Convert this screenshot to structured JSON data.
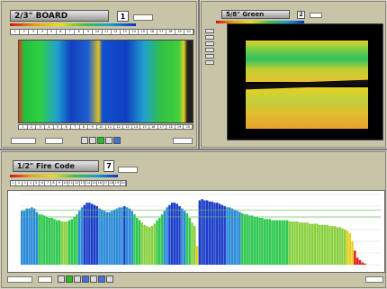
{
  "top_left": {
    "title": "2/3\" BOARD",
    "number": "1",
    "tick_labels": [
      "1",
      "2",
      "3",
      "4",
      "5",
      "6",
      "7",
      "8",
      "9",
      "10",
      "11",
      "12",
      "13",
      "14",
      "15",
      "16",
      "17",
      "18",
      "19",
      "20"
    ],
    "bottom_tick_labels": [
      "1",
      "2",
      "3",
      "4",
      "5",
      "6",
      "7",
      "8",
      "9",
      "10",
      "11",
      "12",
      "13",
      "14",
      "15",
      "16",
      "17",
      "18",
      "19",
      "20"
    ],
    "rows": 8
  },
  "top_right": {
    "title": "5/8\" Green",
    "number": "2"
  },
  "bottom": {
    "title": "1/2\" Fire Code",
    "number": "7",
    "tick_labels": [
      "1",
      "2",
      "3",
      "4",
      "5",
      "6",
      "7",
      "8",
      "9",
      "10",
      "11",
      "12",
      "13",
      "14",
      "15",
      "16",
      "17",
      "18",
      "19",
      "20"
    ]
  },
  "chart_data": {
    "type": "bar",
    "values": [
      46,
      46,
      48,
      48,
      49,
      48,
      45,
      43,
      43,
      42,
      41,
      40,
      40,
      39,
      38,
      38,
      37,
      37,
      37,
      38,
      39,
      41,
      43,
      46,
      49,
      51,
      53,
      53,
      52,
      51,
      50,
      48,
      47,
      46,
      45,
      45,
      46,
      47,
      48,
      49,
      49,
      50,
      49,
      48,
      46,
      43,
      40,
      38,
      36,
      34,
      33,
      32,
      33,
      35,
      38,
      40,
      43,
      46,
      49,
      51,
      53,
      53,
      52,
      50,
      48,
      46,
      44,
      40,
      36,
      33,
      16,
      55,
      56,
      55,
      55,
      54,
      54,
      53,
      53,
      52,
      51,
      50,
      49,
      49,
      48,
      47,
      46,
      45,
      44,
      43,
      43,
      42,
      42,
      41,
      41,
      40,
      40,
      39,
      39,
      39,
      38,
      38,
      38,
      38,
      38,
      38,
      38,
      37,
      37,
      37,
      37,
      36,
      36,
      36,
      36,
      35,
      35,
      35,
      35,
      34,
      34,
      34,
      34,
      33,
      33,
      33,
      32,
      32,
      31,
      30,
      29,
      27,
      20,
      12,
      6,
      4,
      2,
      1
    ]
  }
}
